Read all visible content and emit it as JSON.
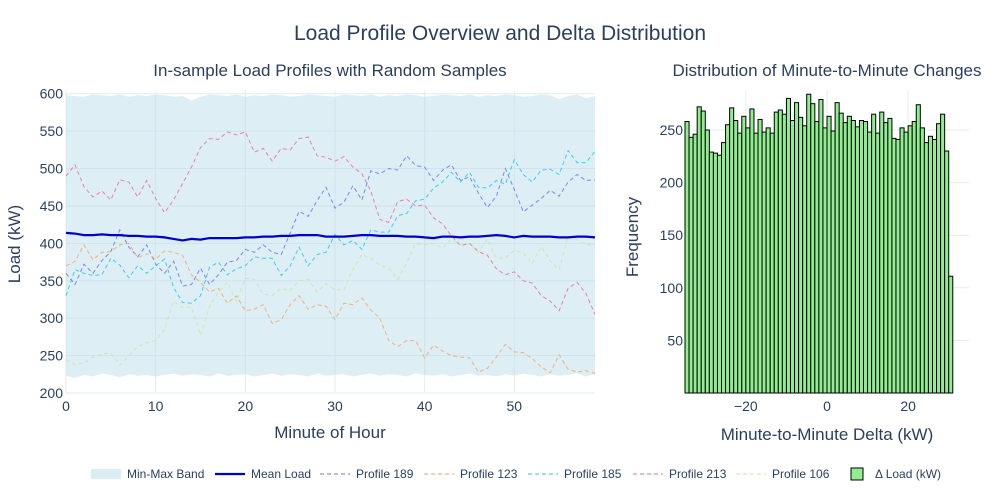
{
  "title": "Load Profile Overview and Delta Distribution",
  "colors": {
    "band": "#add8e6",
    "mean": "#0000cd",
    "profile_189": "#6f74e8",
    "profile_123": "#f4a26a",
    "profile_185": "#27c4e6",
    "profile_213": "#ec6b9e",
    "profile_106": "#c9e6a0",
    "hist_fill": "#90ee90",
    "hist_line": "#000000",
    "grid": "#e6ebf2",
    "text": "#2a3f5f"
  },
  "legend": [
    {
      "label": "Min-Max Band",
      "kind": "band",
      "color": "#add8e6"
    },
    {
      "label": "Mean Load",
      "kind": "line",
      "color": "#0000cd"
    },
    {
      "label": "Profile 189",
      "kind": "dash",
      "color": "#6f74e8"
    },
    {
      "label": "Profile 123",
      "kind": "dash",
      "color": "#f4a26a"
    },
    {
      "label": "Profile 185",
      "kind": "dash",
      "color": "#27c4e6"
    },
    {
      "label": "Profile 213",
      "kind": "dash",
      "color": "#ec6b9e"
    },
    {
      "label": "Profile 106",
      "kind": "dash",
      "color": "#c9e6a0"
    },
    {
      "label": "Δ Load (kW)",
      "kind": "box",
      "color": "#90ee90"
    }
  ],
  "chart_data": [
    {
      "type": "line",
      "title": "In-sample Load Profiles with Random Samples",
      "xlabel": "Minute of Hour",
      "ylabel": "Load (kW)",
      "xlim": [
        0,
        59
      ],
      "ylim": [
        200,
        605
      ],
      "xticks": [
        0,
        10,
        20,
        30,
        40,
        50
      ],
      "yticks": [
        200,
        250,
        300,
        350,
        400,
        450,
        500,
        550,
        600
      ],
      "grid": true,
      "x": [
        0,
        1,
        2,
        3,
        4,
        5,
        6,
        7,
        8,
        9,
        10,
        11,
        12,
        13,
        14,
        15,
        16,
        17,
        18,
        19,
        20,
        21,
        22,
        23,
        24,
        25,
        26,
        27,
        28,
        29,
        30,
        31,
        32,
        33,
        34,
        35,
        36,
        37,
        38,
        39,
        40,
        41,
        42,
        43,
        44,
        45,
        46,
        47,
        48,
        49,
        50,
        51,
        52,
        53,
        54,
        55,
        56,
        57,
        58,
        59
      ],
      "band": {
        "name": "Min-Max Band",
        "lower": [
          223,
          220,
          224,
          222,
          226,
          224,
          221,
          225,
          223,
          224,
          222,
          224,
          226,
          223,
          225,
          224,
          222,
          226,
          223,
          224,
          225,
          222,
          224,
          226,
          223,
          225,
          224,
          222,
          226,
          223,
          224,
          225,
          222,
          224,
          226,
          223,
          225,
          224,
          222,
          226,
          224,
          223,
          225,
          222,
          224,
          226,
          223,
          224,
          222,
          225,
          223,
          226,
          224,
          222,
          225,
          223,
          224,
          226,
          222,
          225
        ],
        "upper": [
          598,
          597,
          596,
          599,
          598,
          597,
          599,
          596,
          598,
          597,
          599,
          598,
          596,
          597,
          591,
          596,
          599,
          598,
          597,
          599,
          596,
          598,
          597,
          599,
          598,
          596,
          597,
          599,
          598,
          597,
          596,
          599,
          598,
          597,
          599,
          596,
          598,
          597,
          599,
          598,
          596,
          597,
          599,
          598,
          597,
          599,
          596,
          598,
          597,
          599,
          598,
          596,
          597,
          599,
          598,
          593,
          597,
          599,
          594,
          597
        ]
      },
      "series": [
        {
          "name": "Mean Load",
          "dash": false,
          "values": [
            414,
            413,
            411,
            411,
            412,
            411,
            411,
            410,
            410,
            409,
            409,
            408,
            406,
            404,
            406,
            405,
            407,
            407,
            407,
            407,
            408,
            408,
            409,
            409,
            410,
            410,
            411,
            411,
            411,
            409,
            409,
            409,
            410,
            411,
            411,
            410,
            410,
            410,
            409,
            409,
            408,
            407,
            409,
            409,
            408,
            409,
            409,
            410,
            411,
            410,
            408,
            410,
            409,
            409,
            409,
            408,
            408,
            409,
            409,
            408
          ]
        },
        {
          "name": "Profile 189",
          "dash": true,
          "values": [
            360,
            345,
            372,
            360,
            377,
            389,
            418,
            395,
            382,
            398,
            372,
            360,
            376,
            343,
            345,
            367,
            345,
            358,
            375,
            377,
            392,
            388,
            398,
            388,
            385,
            414,
            443,
            436,
            457,
            475,
            447,
            455,
            477,
            458,
            497,
            493,
            500,
            498,
            517,
            504,
            502,
            484,
            498,
            505,
            484,
            489,
            467,
            448,
            463,
            500,
            472,
            442,
            451,
            460,
            471,
            463,
            482,
            492,
            484,
            485
          ]
        },
        {
          "name": "Profile 123",
          "dash": true,
          "values": [
            370,
            376,
            398,
            378,
            388,
            389,
            398,
            400,
            381,
            386,
            379,
            390,
            388,
            384,
            358,
            348,
            335,
            340,
            320,
            330,
            310,
            312,
            318,
            293,
            298,
            318,
            330,
            312,
            318,
            316,
            298,
            320,
            318,
            327,
            311,
            300,
            270,
            262,
            270,
            270,
            247,
            264,
            256,
            250,
            248,
            247,
            228,
            233,
            248,
            265,
            255,
            254,
            246,
            235,
            227,
            251,
            232,
            228,
            230,
            226
          ]
        },
        {
          "name": "Profile 185",
          "dash": true,
          "values": [
            330,
            365,
            360,
            357,
            358,
            380,
            371,
            354,
            370,
            360,
            370,
            379,
            341,
            321,
            320,
            330,
            368,
            375,
            358,
            366,
            370,
            382,
            380,
            380,
            357,
            370,
            395,
            370,
            385,
            388,
            412,
            398,
            404,
            392,
            418,
            415,
            415,
            437,
            440,
            457,
            459,
            474,
            482,
            495,
            482,
            495,
            475,
            474,
            484,
            479,
            512,
            492,
            482,
            498,
            499,
            492,
            524,
            508,
            508,
            523
          ]
        },
        {
          "name": "Profile 213",
          "dash": true,
          "values": [
            490,
            505,
            476,
            462,
            470,
            458,
            485,
            482,
            462,
            484,
            460,
            441,
            458,
            480,
            502,
            528,
            540,
            539,
            549,
            545,
            549,
            522,
            527,
            510,
            527,
            525,
            540,
            542,
            517,
            515,
            510,
            516,
            502,
            493,
            470,
            432,
            428,
            456,
            459,
            450,
            451,
            434,
            426,
            410,
            397,
            400,
            389,
            384,
            366,
            358,
            362,
            350,
            347,
            330,
            323,
            310,
            340,
            348,
            333,
            305
          ]
        },
        {
          "name": "Profile 106",
          "dash": true,
          "values": [
            245,
            238,
            240,
            248,
            252,
            253,
            237,
            250,
            262,
            267,
            270,
            285,
            323,
            314,
            315,
            277,
            316,
            335,
            348,
            323,
            353,
            352,
            332,
            330,
            340,
            337,
            350,
            352,
            335,
            346,
            338,
            338,
            365,
            385,
            380,
            371,
            367,
            352,
            374,
            400,
            398,
            400,
            394,
            406,
            398,
            400,
            388,
            406,
            380,
            380,
            391,
            387,
            373,
            396,
            377,
            365,
            410,
            405,
            398,
            398
          ]
        }
      ]
    },
    {
      "type": "bar",
      "title": "Distribution of Minute-to-Minute Changes",
      "xlabel": "Minute-to-Minute Delta (kW)",
      "ylabel": "Frequency",
      "series_name": "Δ Load (kW)",
      "xlim": [
        -35,
        35
      ],
      "ylim": [
        0,
        288
      ],
      "xticks": [
        -20,
        0,
        20
      ],
      "yticks": [
        50,
        100,
        150,
        200,
        250
      ],
      "bin_width": 1,
      "bin_start": -35,
      "values": [
        258,
        243,
        246,
        272,
        268,
        250,
        229,
        228,
        226,
        238,
        255,
        271,
        259,
        247,
        263,
        252,
        270,
        247,
        260,
        248,
        252,
        247,
        267,
        269,
        265,
        280,
        259,
        276,
        262,
        254,
        284,
        275,
        258,
        279,
        252,
        263,
        249,
        276,
        266,
        257,
        263,
        259,
        253,
        259,
        258,
        248,
        265,
        247,
        267,
        257,
        261,
        242,
        241,
        252,
        248,
        254,
        258,
        274,
        252,
        238,
        244,
        241,
        256,
        265,
        230,
        111
      ]
    }
  ]
}
